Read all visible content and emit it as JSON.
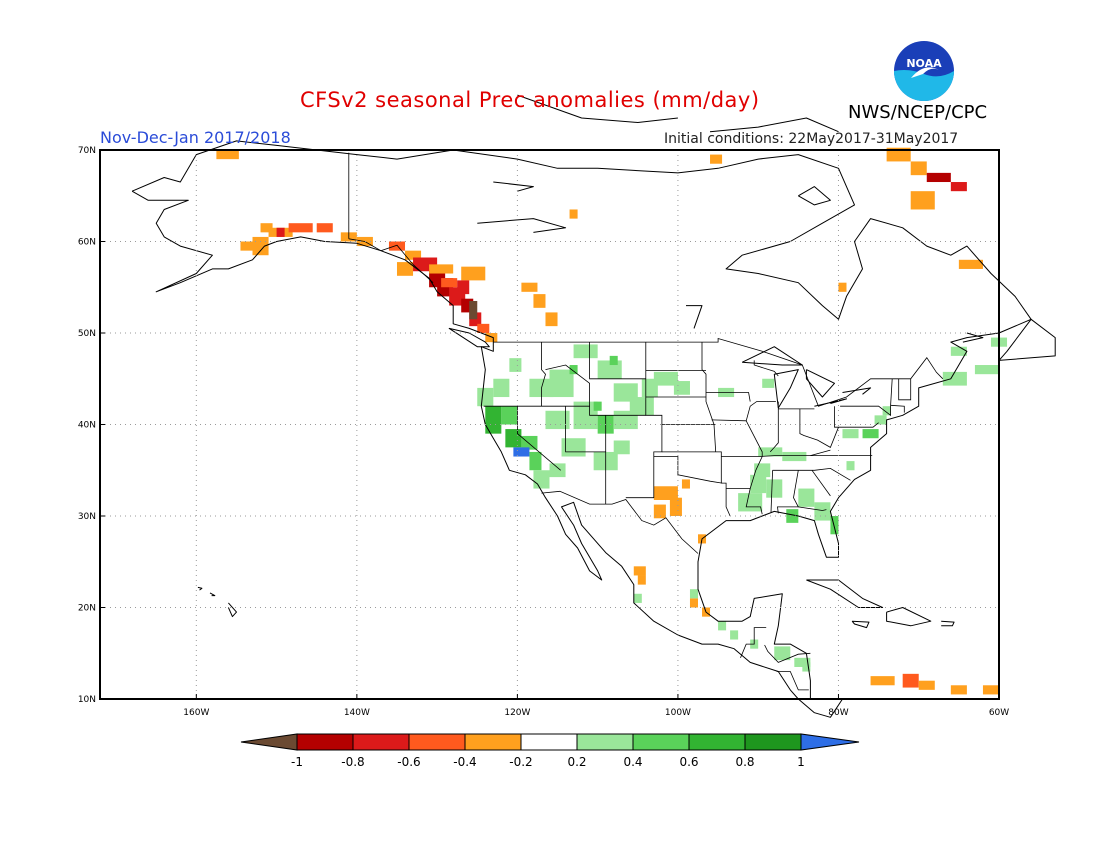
{
  "header": {
    "title": "CFSv2 seasonal Prec anomalies (mm/day)",
    "period": "Nov-Dec-Jan 2017/2018",
    "initial_conditions": "Initial conditions: 22May2017-31May2017",
    "agency": "NWS/NCEP/CPC",
    "logo_text": "NOAA"
  },
  "map": {
    "projection": "equirectangular",
    "lon_range": [
      -172,
      -60
    ],
    "lat_range": [
      10,
      70
    ],
    "grid": true,
    "lat_labels": [
      "70N",
      "60N",
      "50N",
      "40N",
      "30N",
      "20N",
      "10N"
    ],
    "lon_labels": [
      "160W",
      "140W",
      "120W",
      "100W",
      "80W",
      "60W"
    ],
    "anomaly_regions": [
      {
        "name": "Pacific Northwest coast / BC",
        "sign": "dry",
        "level": "-0.6 to -0.8"
      },
      {
        "name": "Southern Alaska coast",
        "sign": "dry",
        "level": "-0.2 to -0.6"
      },
      {
        "name": "California / Great Basin",
        "sign": "wet",
        "level": "0.2 to 1"
      },
      {
        "name": "Southeast US",
        "sign": "wet",
        "level": "0.2 to 0.4"
      },
      {
        "name": "West Texas",
        "sign": "dry",
        "level": "-0.2 to -0.4"
      },
      {
        "name": "Caribbean north of South America",
        "sign": "dry",
        "level": "-0.2 to -0.6"
      }
    ]
  },
  "colorbar": {
    "labels": [
      "-1",
      "-0.8",
      "-0.6",
      "-0.4",
      "-0.2",
      "0.2",
      "0.4",
      "0.6",
      "0.8",
      "1"
    ],
    "colors": [
      "#6b4a32",
      "#b40000",
      "#dc1a1a",
      "#ff5a1e",
      "#ffa01e",
      "#ffffff",
      "#9ae69a",
      "#5ad25a",
      "#32b432",
      "#1e961e",
      "#2e6ee6"
    ]
  }
}
